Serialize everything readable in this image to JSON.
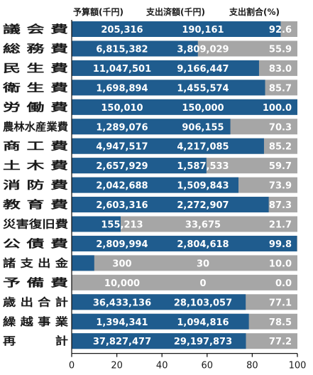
{
  "chart_data": {
    "type": "bar",
    "orientation": "horizontal",
    "stacked_percent": true,
    "headers": [
      "予算額(千円)",
      "支出済額(千円)",
      "支出割合(%)"
    ],
    "rows": [
      {
        "label": "議 会 費",
        "budget": "205,316",
        "spent": "190,161",
        "ratio": 92.6,
        "ratio_label": "92.6"
      },
      {
        "label": "総 務 費",
        "budget": "6,815,382",
        "spent": "3,809,029",
        "ratio": 55.9,
        "ratio_label": "55.9"
      },
      {
        "label": "民 生 費",
        "budget": "11,047,501",
        "spent": "9,166,447",
        "ratio": 83.0,
        "ratio_label": "83.0"
      },
      {
        "label": "衛 生 費",
        "budget": "1,698,894",
        "spent": "1,455,574",
        "ratio": 85.7,
        "ratio_label": "85.7"
      },
      {
        "label": "労 働 費",
        "budget": "150,010",
        "spent": "150,000",
        "ratio": 100.0,
        "ratio_label": "100.0"
      },
      {
        "label": "農林水産業費",
        "budget": "1,289,076",
        "spent": "906,155",
        "ratio": 70.3,
        "ratio_label": "70.3"
      },
      {
        "label": "商 工 費",
        "budget": "4,947,517",
        "spent": "4,217,085",
        "ratio": 85.2,
        "ratio_label": "85.2"
      },
      {
        "label": "土 木 費",
        "budget": "2,657,929",
        "spent": "1,587,533",
        "ratio": 59.7,
        "ratio_label": "59.7"
      },
      {
        "label": "消 防 費",
        "budget": "2,042,688",
        "spent": "1,509,843",
        "ratio": 73.9,
        "ratio_label": "73.9"
      },
      {
        "label": "教 育 費",
        "budget": "2,603,316",
        "spent": "2,272,907",
        "ratio": 87.3,
        "ratio_label": "87.3"
      },
      {
        "label": "災害復旧費",
        "budget": "155,213",
        "spent": "33,675",
        "ratio": 21.7,
        "ratio_label": "21.7"
      },
      {
        "label": "公 債 費",
        "budget": "2,809,994",
        "spent": "2,804,618",
        "ratio": 99.8,
        "ratio_label": "99.8"
      },
      {
        "label": "諸 支 出 金",
        "budget": "300",
        "spent": "30",
        "ratio": 10.0,
        "ratio_label": "10.0"
      },
      {
        "label": "予 備 費",
        "budget": "10,000",
        "spent": "0",
        "ratio": 0.0,
        "ratio_label": "0.0"
      },
      {
        "label": "歳 出 合 計",
        "budget": "36,433,136",
        "spent": "28,103,057",
        "ratio": 77.1,
        "ratio_label": "77.1"
      },
      {
        "label": "繰 越 事 業",
        "budget": "1,394,341",
        "spent": "1,094,816",
        "ratio": 78.5,
        "ratio_label": "78.5"
      },
      {
        "label": "再 　 　 計",
        "budget": "37,827,477",
        "spent": "29,197,873",
        "ratio": 77.2,
        "ratio_label": "77.2"
      }
    ],
    "x_ticks": [
      0,
      20,
      40,
      60,
      80,
      100
    ],
    "xlim": [
      0,
      100
    ],
    "colors": {
      "spent": "#1f5c8e",
      "remaining": "#a6a6a6",
      "text": "#ffffff"
    }
  }
}
